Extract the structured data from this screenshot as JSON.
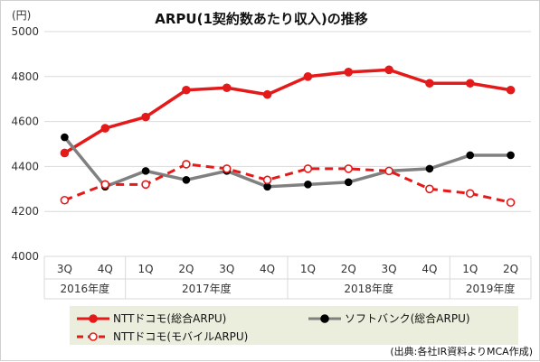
{
  "chart_data": {
    "type": "line",
    "title": "ARPU(1契約数あたり収入)の推移",
    "unit": "(円)",
    "source_note": "(出典:各社IR資料よりMCA作成)",
    "ylim": [
      4000,
      5000
    ],
    "yticks": [
      4000,
      4200,
      4400,
      4600,
      4800,
      5000
    ],
    "grid": true,
    "quarters": [
      "3Q",
      "4Q",
      "1Q",
      "2Q",
      "3Q",
      "4Q",
      "1Q",
      "2Q",
      "3Q",
      "4Q",
      "1Q",
      "2Q"
    ],
    "years": [
      {
        "label": "2016年度",
        "start": 0,
        "end": 1
      },
      {
        "label": "2017年度",
        "start": 2,
        "end": 5
      },
      {
        "label": "2018年度",
        "start": 6,
        "end": 9
      },
      {
        "label": "2019年度",
        "start": 10,
        "end": 11
      }
    ],
    "legend_placement": "bottom",
    "series": [
      {
        "name": "NTTドコモ(総合ARPU)",
        "color": "#e41a1a",
        "style": "solid",
        "marker": "filled",
        "values": [
          4460,
          4570,
          4620,
          4740,
          4750,
          4720,
          4800,
          4820,
          4830,
          4770,
          4770,
          4740
        ]
      },
      {
        "name": "ソフトバンク(総合ARPU)",
        "color": "#808080",
        "style": "solid",
        "marker": "filled-black",
        "values": [
          4530,
          4310,
          4380,
          4340,
          4380,
          4310,
          4320,
          4330,
          4380,
          4390,
          4450,
          4450
        ]
      },
      {
        "name": "NTTドコモ(モバイルARPU)",
        "color": "#e41a1a",
        "style": "dashed",
        "marker": "hollow",
        "values": [
          4250,
          4320,
          4320,
          4410,
          4390,
          4340,
          4390,
          4390,
          4380,
          4300,
          4280,
          4240
        ]
      }
    ]
  }
}
